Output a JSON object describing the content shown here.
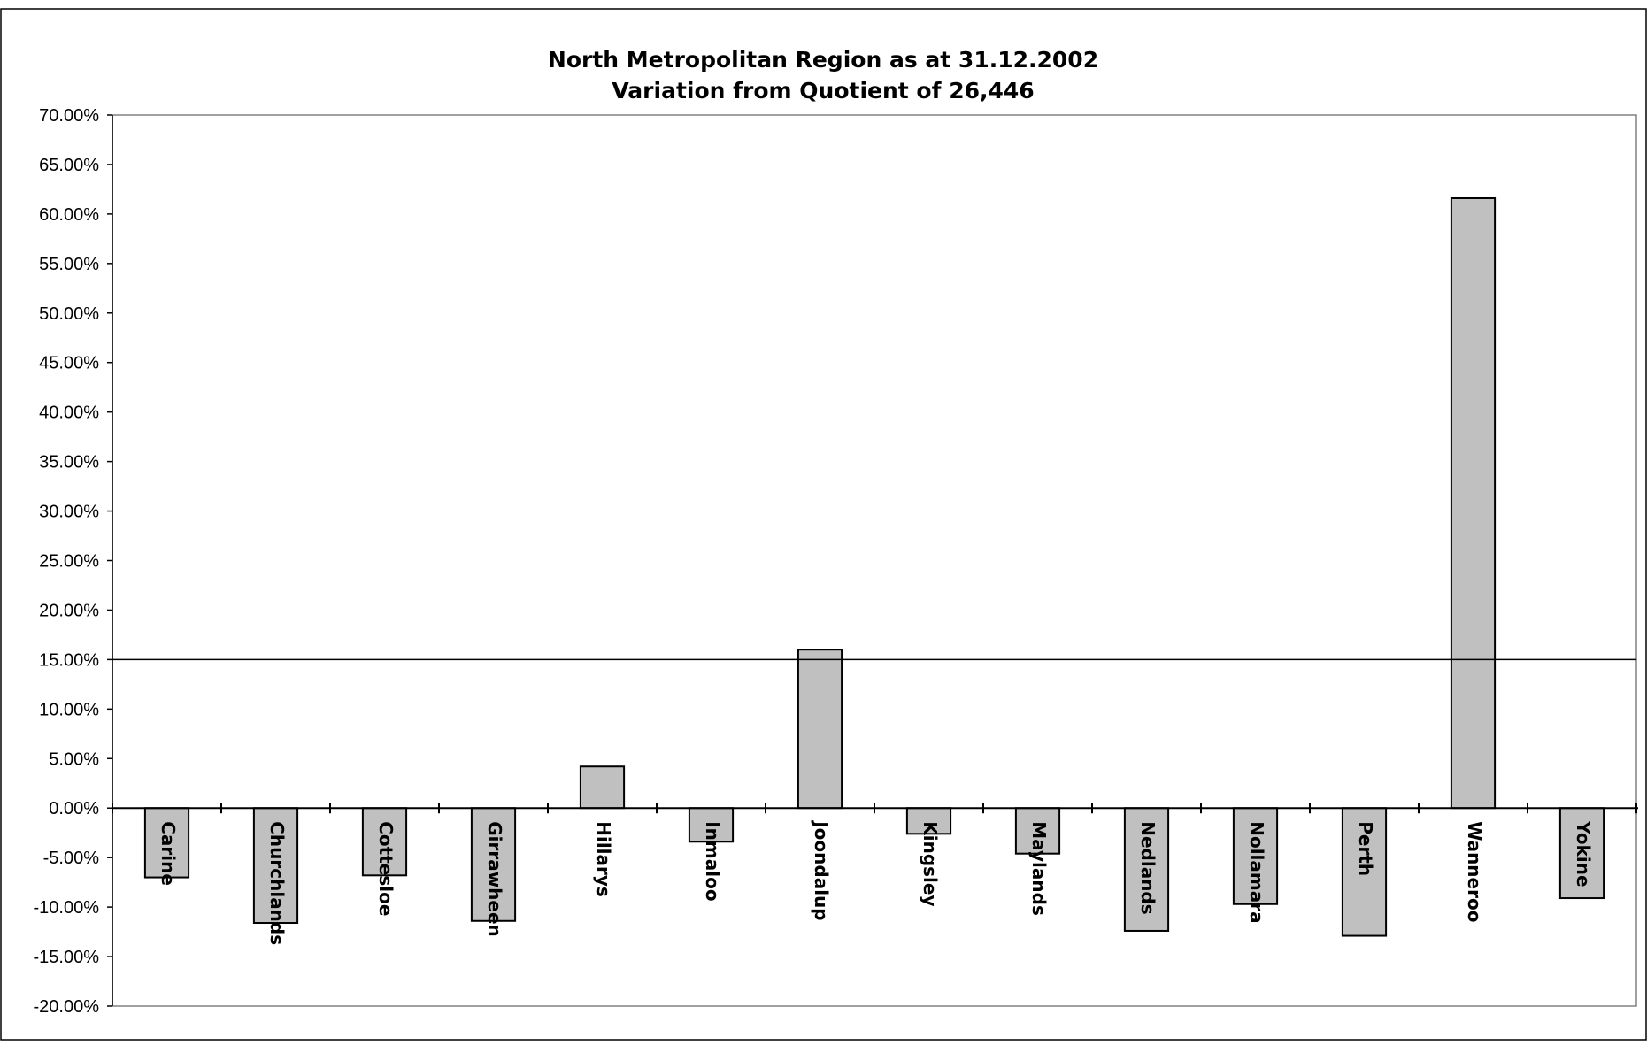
{
  "chart_data": {
    "type": "bar",
    "title": "North Metropolitan Region as at 31.12.2002",
    "subtitle": "Variation from Quotient of 26,446",
    "xlabel": "",
    "ylabel": "",
    "categories": [
      "Carine",
      "Churchlands",
      "Cottesloe",
      "Girrawheen",
      "Hillarys",
      "Inmaloo",
      "Joondalup",
      "Kingsley",
      "Maylands",
      "Nedlands",
      "Nollamara",
      "Perth",
      "Wanneroo",
      "Yokine"
    ],
    "values": [
      -7.0,
      -11.6,
      -6.8,
      -11.4,
      4.2,
      -3.4,
      16.0,
      -2.6,
      -4.6,
      -12.4,
      -9.7,
      -12.9,
      61.6,
      -9.1
    ],
    "ylim": [
      -20,
      70
    ],
    "ytick_step": 5,
    "ytick_labels": [
      "70.00%",
      "65.00%",
      "60.00%",
      "55.00%",
      "50.00%",
      "45.00%",
      "40.00%",
      "35.00%",
      "30.00%",
      "25.00%",
      "20.00%",
      "15.00%",
      "10.00%",
      "5.00%",
      "0.00%",
      "-5.00%",
      "-10.00%",
      "-15.00%",
      "-20.00%"
    ],
    "reference_line": 15,
    "grid": false,
    "legend": "none",
    "colors": {
      "bar_fill": "#c0c0c0",
      "bar_stroke": "#000000",
      "axis": "#000000",
      "background": "#ffffff"
    }
  }
}
